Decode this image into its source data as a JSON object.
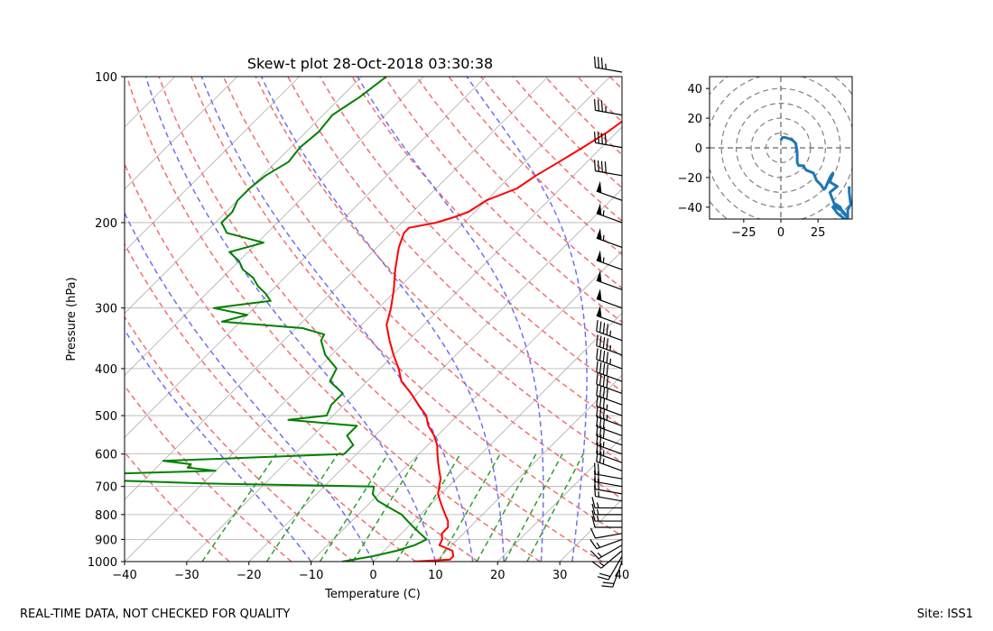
{
  "footer": {
    "quality_note": "REAL-TIME DATA, NOT CHECKED FOR QUALITY",
    "site": "Site: ISS1"
  },
  "chart_data": [
    {
      "type": "skew-t",
      "title": "Skew-t plot 28-Oct-2018 03:30:38",
      "xlabel": "Temperature (C)",
      "ylabel": "Pressure (hPa)",
      "xlim": [
        -40,
        40
      ],
      "ylim_pressure": [
        1000,
        100
      ],
      "x_ticks": [
        "−40",
        "−30",
        "−20",
        "−10",
        "0",
        "10",
        "20",
        "30",
        "40"
      ],
      "y_ticks": [
        "100",
        "200",
        "300",
        "400",
        "500",
        "600",
        "700",
        "800",
        "900",
        "1000"
      ],
      "y_tick_values": [
        100,
        200,
        300,
        400,
        500,
        600,
        700,
        800,
        900,
        1000
      ],
      "grid": true,
      "colors": {
        "temperature": "#ff0000",
        "dewpoint": "#008000",
        "dry_adiabat": "#f07070",
        "moist_adiabat": "#7070f0",
        "mixing_ratio": "#2ca02c",
        "isotherm": "#b0b0b0",
        "isobar": "#b0b0b0"
      },
      "series": [
        {
          "p": [
            1000,
            990,
            975,
            950,
            925,
            900,
            875,
            850,
            825,
            800,
            775,
            750,
            725,
            700,
            675,
            650,
            625,
            600,
            575,
            550,
            525,
            500,
            475,
            450,
            425,
            400,
            375,
            350,
            325,
            300,
            275,
            250,
            225,
            210,
            205,
            200,
            195,
            190,
            180,
            170,
            160,
            150,
            140,
            130,
            120,
            110,
            100
          ],
          "t": [
            6.5,
            12,
            12,
            11,
            8,
            7.5,
            6.5,
            6.5,
            5.5,
            4,
            2.5,
            1,
            -0.5,
            -1.5,
            -2.5,
            -4,
            -5.5,
            -7,
            -8.5,
            -10.5,
            -13,
            -15,
            -18,
            -21,
            -24.5,
            -27,
            -30,
            -33,
            -36,
            -38,
            -40.5,
            -43.5,
            -46.5,
            -48,
            -48,
            -44.5,
            -42.5,
            -41,
            -40,
            -37,
            -36,
            -34.5,
            -33,
            -31.5,
            -30.5,
            -29,
            -28
          ]
        },
        {
          "p": [
            1000,
            975,
            950,
            925,
            900,
            875,
            850,
            825,
            800,
            775,
            750,
            725,
            700,
            690,
            680,
            670,
            660,
            650,
            640,
            630,
            620,
            600,
            575,
            550,
            525,
            510,
            500,
            475,
            450,
            425,
            400,
            375,
            350,
            340,
            330,
            320,
            310,
            300,
            290,
            280,
            270,
            260,
            250,
            240,
            230,
            220,
            210,
            200,
            190,
            180,
            170,
            160,
            150,
            140,
            130,
            120,
            110,
            100
          ],
          "t": [
            -5,
            -1,
            2,
            4,
            5,
            3,
            1,
            -1,
            -3,
            -6,
            -9,
            -11,
            -12,
            -40,
            -55,
            -60,
            -58,
            -40,
            -45,
            -45,
            -50,
            -22,
            -22,
            -24.5,
            -24.5,
            -36.5,
            -31,
            -32,
            -32,
            -36,
            -37,
            -41,
            -44,
            -44.5,
            -49,
            -63,
            -60,
            -66.5,
            -58.5,
            -60.5,
            -63,
            -65,
            -68,
            -70,
            -73,
            -69,
            -76.5,
            -79,
            -79,
            -80,
            -80,
            -79.5,
            -78,
            -78.5,
            -78,
            -78.5,
            -77,
            -76
          ]
        }
      ],
      "wind_profile": {
        "p": [
          1000,
          975,
          950,
          925,
          900,
          875,
          850,
          825,
          800,
          775,
          750,
          725,
          700,
          675,
          650,
          625,
          600,
          575,
          550,
          525,
          500,
          475,
          450,
          425,
          400,
          375,
          350,
          325,
          300,
          275,
          250,
          225,
          200,
          180,
          160,
          140,
          120,
          100
        ],
        "speed_kt": [
          20,
          20,
          15,
          15,
          15,
          10,
          10,
          15,
          15,
          15,
          15,
          20,
          20,
          20,
          25,
          25,
          25,
          30,
          30,
          35,
          35,
          40,
          40,
          40,
          45,
          45,
          45,
          50,
          50,
          50,
          55,
          55,
          55,
          50,
          40,
          40,
          35,
          35
        ],
        "direction_deg": [
          200,
          210,
          230,
          240,
          250,
          260,
          270,
          270,
          270,
          270,
          280,
          280,
          280,
          280,
          290,
          290,
          290,
          290,
          290,
          290,
          290,
          290,
          290,
          290,
          290,
          290,
          290,
          290,
          290,
          290,
          290,
          290,
          290,
          290,
          280,
          280,
          280,
          280
        ]
      }
    },
    {
      "type": "hodograph",
      "xlim": [
        -48,
        48
      ],
      "ylim": [
        -48,
        48
      ],
      "x_ticks": [
        "−25",
        "0",
        "25"
      ],
      "x_tick_values": [
        -25,
        0,
        25
      ],
      "y_ticks": [
        "40",
        "20",
        "0",
        "−20",
        "−40"
      ],
      "y_tick_values": [
        40,
        20,
        0,
        -20,
        -40
      ],
      "rings": [
        10,
        20,
        30,
        40,
        50,
        60
      ],
      "line_color": "#1f77b4",
      "u": [
        0,
        1,
        3,
        6,
        8,
        10,
        11,
        11,
        12,
        15,
        17,
        22,
        24,
        27,
        29,
        30,
        33,
        35,
        33,
        38,
        33,
        36,
        37,
        42,
        45,
        42,
        40,
        37,
        35,
        35,
        38,
        43,
        45,
        45,
        47,
        46,
        46
      ],
      "v": [
        5,
        7,
        7,
        6,
        5,
        3,
        -3,
        -10,
        -12,
        -12,
        -15,
        -17,
        -22,
        -25,
        -28,
        -27,
        -20,
        -17,
        -23,
        -26,
        -30,
        -38,
        -40,
        -43,
        -47,
        -44,
        -40,
        -38,
        -40,
        -40,
        -44,
        -48,
        -48,
        -42,
        -38,
        -30,
        -26
      ]
    }
  ]
}
